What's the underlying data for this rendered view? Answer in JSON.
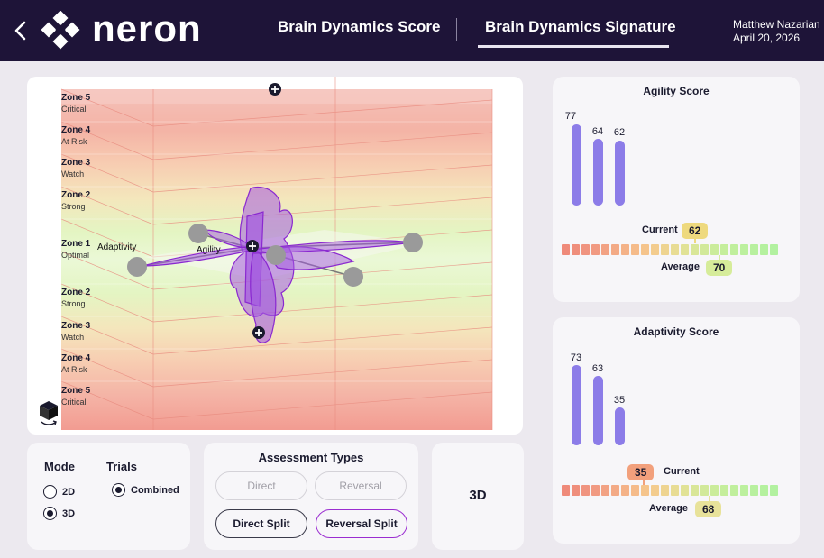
{
  "header": {
    "brand": "neron",
    "tabs": [
      {
        "label": "Brain Dynamics Score",
        "active": false
      },
      {
        "label": "Brain Dynamics Signature",
        "active": true
      }
    ],
    "user_name": "Matthew Nazarian",
    "date": "April 20, 2026"
  },
  "visualization": {
    "zones": [
      {
        "name": "Zone 5",
        "status": "Critical"
      },
      {
        "name": "Zone 4",
        "status": "At Risk"
      },
      {
        "name": "Zone 3",
        "status": "Watch"
      },
      {
        "name": "Zone 2",
        "status": "Strong"
      },
      {
        "name": "Zone 1",
        "status": "Optimal"
      },
      {
        "name": "Zone 2",
        "status": "Strong"
      },
      {
        "name": "Zone 3",
        "status": "Watch"
      },
      {
        "name": "Zone 4",
        "status": "At Risk"
      },
      {
        "name": "Zone 5",
        "status": "Critical"
      }
    ],
    "axis_labels": {
      "adaptivity": "Adaptivity",
      "agility": "Agility"
    },
    "view_cube_icon": "cube-rotate-icon",
    "colors": {
      "critical": "#f08a7e",
      "at_risk": "#f5a688",
      "watch": "#f8c89a",
      "strong": "#d9f0a0",
      "optimal": "#e4f7c4",
      "signature": "#9a3ad8"
    }
  },
  "controls": {
    "mode_title": "Mode",
    "trials_title": "Trials",
    "modes": [
      {
        "label": "2D",
        "selected": false
      },
      {
        "label": "3D",
        "selected": true
      }
    ],
    "trials": [
      {
        "label": "Combined",
        "selected": true
      }
    ],
    "assessment_title": "Assessment Types",
    "assessment_buttons": [
      {
        "label": "Direct",
        "state": "disabled"
      },
      {
        "label": "Reversal",
        "state": "disabled"
      },
      {
        "label": "Direct Split",
        "state": "outlined"
      },
      {
        "label": "Reversal Split",
        "state": "selected"
      }
    ],
    "view_mode": "3D"
  },
  "agility": {
    "title": "Agility Score",
    "bars": [
      77,
      64,
      62
    ],
    "current_label": "Current",
    "current_value": "62",
    "average_label": "Average",
    "average_value": "70"
  },
  "adaptivity": {
    "title": "Adaptivity Score",
    "bars": [
      73,
      63,
      35
    ],
    "current_label": "Current",
    "current_value": "35",
    "average_label": "Average",
    "average_value": "68"
  }
}
